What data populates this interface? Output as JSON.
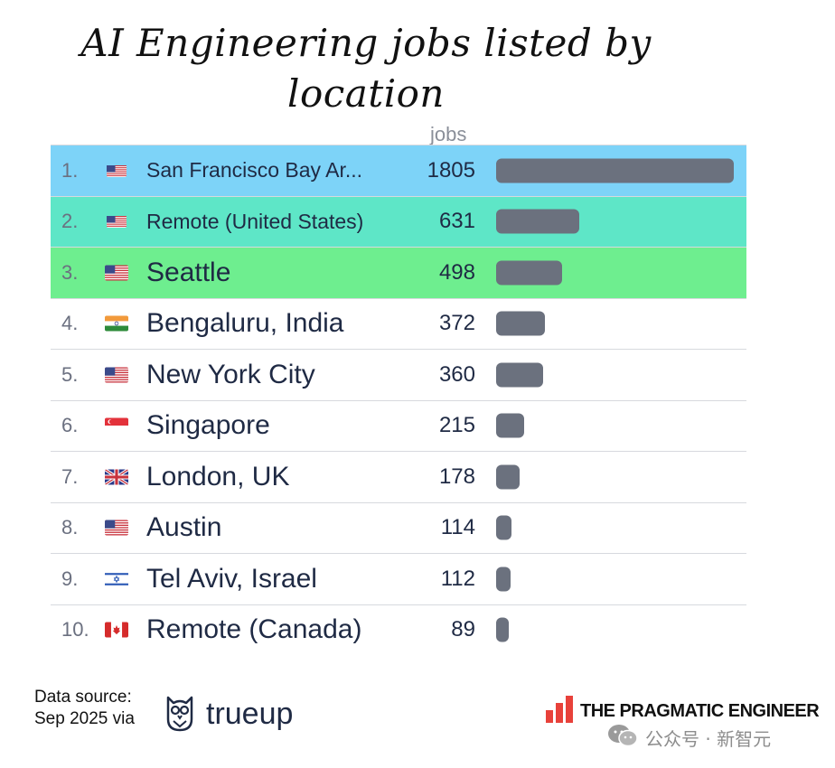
{
  "title": "AI Engineering jobs listed by location",
  "column_header": "jobs",
  "colors": {
    "row1": "#7dd3f8",
    "row2": "#5ee6c7",
    "row3": "#6eee8f",
    "bar": "#6b717e",
    "tpe_logo": "#e8413a"
  },
  "chart_data": {
    "type": "bar",
    "title": "AI Engineering jobs listed by location",
    "xlabel": "jobs",
    "ylabel": "",
    "categories": [
      "San Francisco Bay Ar...",
      "Remote (United States)",
      "Seattle",
      "Bengaluru, India",
      "New York City",
      "Singapore",
      "London, UK",
      "Austin",
      "Tel Aviv, Israel",
      "Remote (Canada)"
    ],
    "values": [
      1805,
      631,
      498,
      372,
      360,
      215,
      178,
      114,
      112,
      89
    ],
    "xlim": [
      0,
      1805
    ],
    "grid": false,
    "legend": "none"
  },
  "rows": [
    {
      "rank": "1.",
      "location": "San Francisco Bay Ar...",
      "jobs": "1805",
      "value": 1805,
      "flag": "us-flag",
      "highlight": "row1",
      "small": true
    },
    {
      "rank": "2.",
      "location": "Remote (United States)",
      "jobs": "631",
      "value": 631,
      "flag": "us-flag",
      "highlight": "row2",
      "small": true
    },
    {
      "rank": "3.",
      "location": "Seattle",
      "jobs": "498",
      "value": 498,
      "flag": "us-flag",
      "highlight": "row3",
      "small": false
    },
    {
      "rank": "4.",
      "location": "Bengaluru, India",
      "jobs": "372",
      "value": 372,
      "flag": "india-flag",
      "highlight": "",
      "small": false
    },
    {
      "rank": "5.",
      "location": "New York City",
      "jobs": "360",
      "value": 360,
      "flag": "us-flag",
      "highlight": "",
      "small": false
    },
    {
      "rank": "6.",
      "location": "Singapore",
      "jobs": "215",
      "value": 215,
      "flag": "singapore-flag",
      "highlight": "",
      "small": false
    },
    {
      "rank": "7.",
      "location": "London, UK",
      "jobs": "178",
      "value": 178,
      "flag": "uk-flag",
      "highlight": "",
      "small": false
    },
    {
      "rank": "8.",
      "location": "Austin",
      "jobs": "114",
      "value": 114,
      "flag": "us-flag",
      "highlight": "",
      "small": false
    },
    {
      "rank": "9.",
      "location": "Tel Aviv, Israel",
      "jobs": "112",
      "value": 112,
      "flag": "israel-flag",
      "highlight": "",
      "small": false
    },
    {
      "rank": "10.",
      "location": "Remote (Canada)",
      "jobs": "89",
      "value": 89,
      "flag": "canada-flag",
      "highlight": "",
      "small": false
    }
  ],
  "footer": {
    "source_line1": "Data source:",
    "source_line2": "Sep 2025 via",
    "source_logo_icon": "owl-icon",
    "source_name": "trueup",
    "publisher_icon": "bar-chart-logo-icon",
    "publisher": "THE PRAGMATIC ENGINEER",
    "watermark_icon": "wechat-icon",
    "watermark": "公众号 · 新智元"
  }
}
